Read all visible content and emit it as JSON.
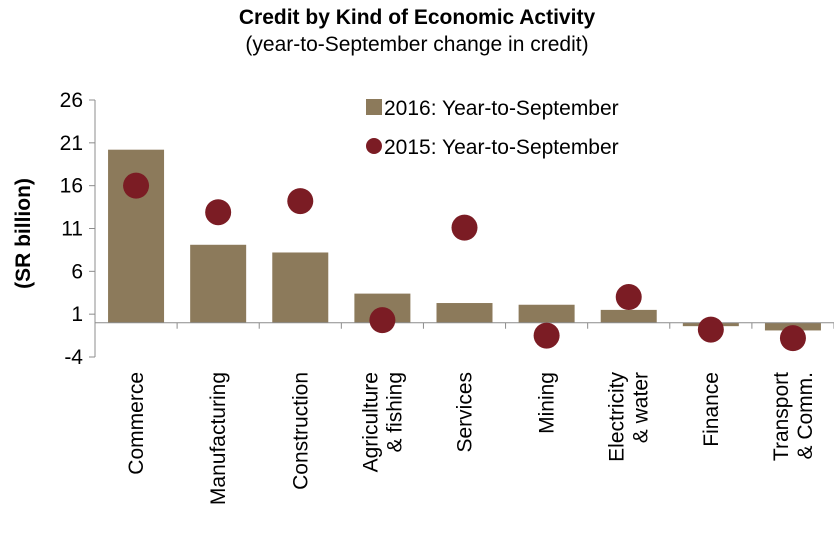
{
  "chart_data": {
    "type": "bar",
    "title": "Credit by Kind of Economic Activity",
    "subtitle": "(year-to-September change in credit)",
    "ylabel": "(SR billion)",
    "xlabel": "",
    "ylim": [
      -4,
      26
    ],
    "yticks": [
      -4,
      1,
      6,
      11,
      16,
      21,
      26
    ],
    "categories": [
      [
        "Commerce"
      ],
      [
        "Manufacturing"
      ],
      [
        "Construction"
      ],
      [
        "Agriculture",
        "& fishing"
      ],
      [
        "Services"
      ],
      [
        "Mining"
      ],
      [
        "Electricity",
        "& water"
      ],
      [
        "Finance"
      ],
      [
        "Transport",
        "& Comm."
      ]
    ],
    "series": [
      {
        "name": "2016: Year-to-September",
        "type": "bar",
        "color": "#8c7a5b",
        "values": [
          20.2,
          9.1,
          8.2,
          3.4,
          2.3,
          2.1,
          1.5,
          -0.4,
          -0.9
        ]
      },
      {
        "name": "2015: Year-to-September",
        "type": "marker",
        "color": "#7b1c24",
        "values": [
          16.0,
          12.9,
          14.2,
          0.3,
          11.1,
          -1.5,
          3.0,
          -0.8,
          -1.8
        ]
      }
    ],
    "legend_position": "top-right",
    "grid": false
  }
}
